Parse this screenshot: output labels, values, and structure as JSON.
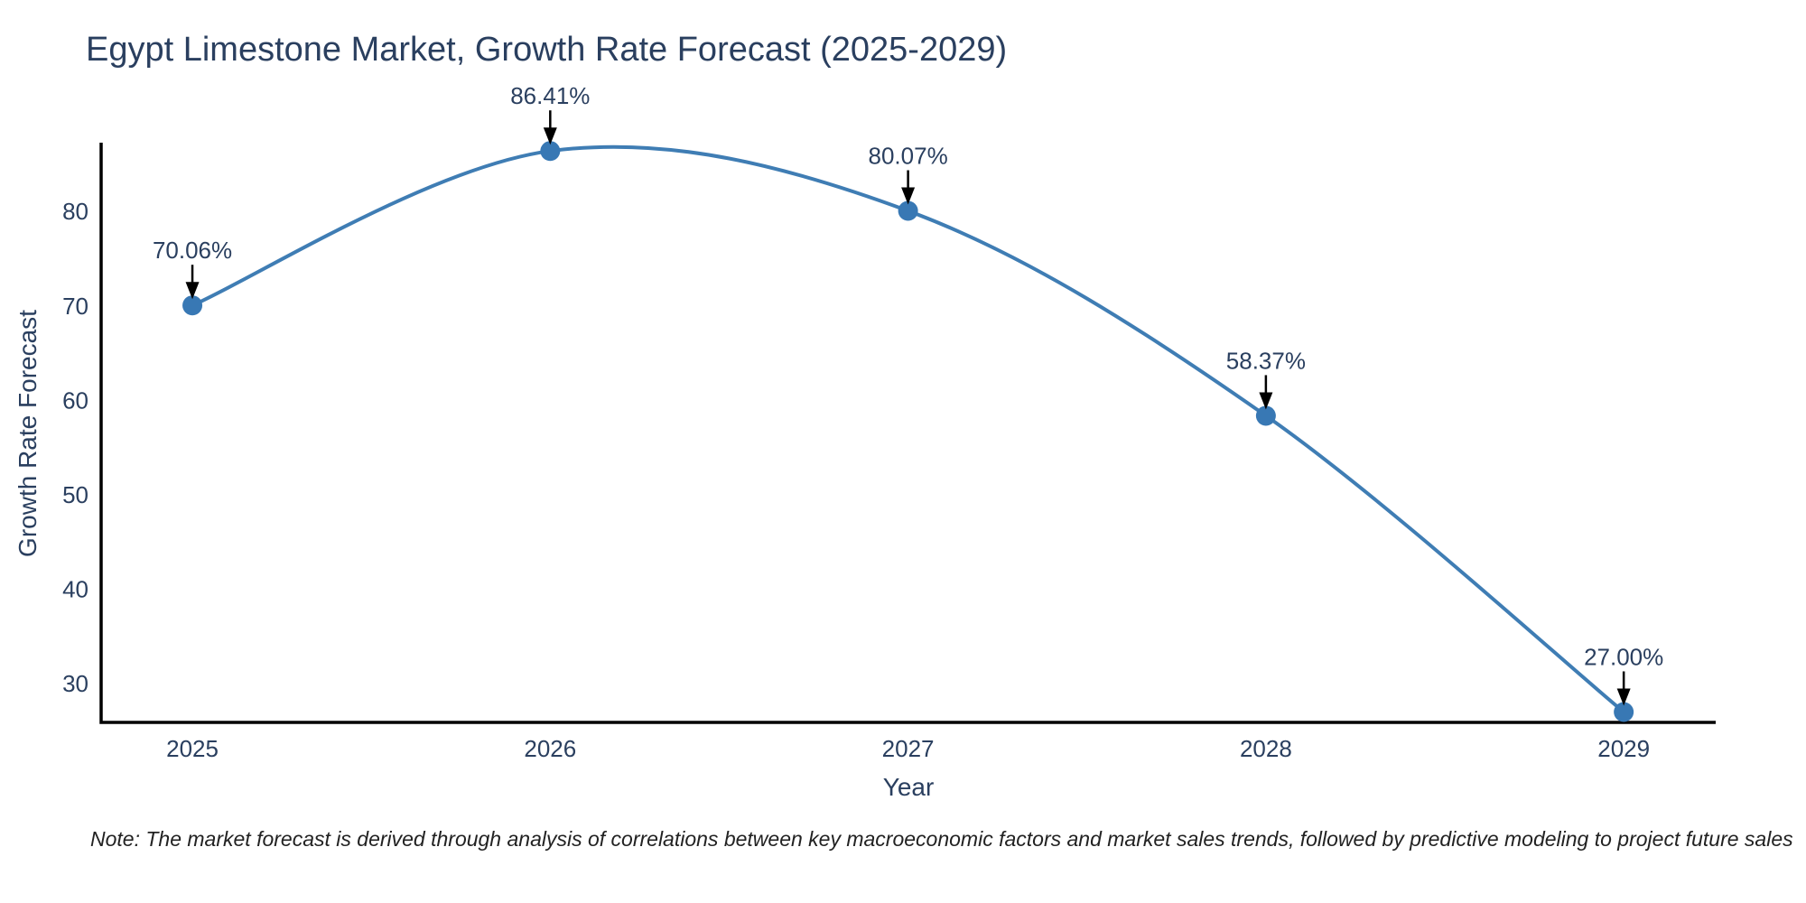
{
  "page": {
    "background": "#ffffff"
  },
  "chart_data": {
    "type": "line",
    "title": "Egypt Limestone Market, Growth Rate Forecast (2025-2029)",
    "xlabel": "Year",
    "ylabel": "Growth Rate Forecast",
    "x": [
      2025,
      2026,
      2027,
      2028,
      2029
    ],
    "y": [
      70.06,
      86.41,
      80.07,
      58.37,
      27.0
    ],
    "point_labels": [
      "70.06%",
      "86.41%",
      "80.07%",
      "58.37%",
      "27.00%"
    ],
    "xticks": [
      "2025",
      "2026",
      "2027",
      "2028",
      "2029"
    ],
    "xtick_values": [
      2025,
      2026,
      2027,
      2028,
      2029
    ],
    "yticks": [
      30,
      40,
      50,
      60,
      70,
      80
    ],
    "xlim": [
      2024.745,
      2029.257
    ],
    "ylim": [
      25.9,
      87.1
    ],
    "grid": false,
    "legend": "none",
    "line_shape": "spline",
    "marker": "circle",
    "annotation_arrows": true,
    "colors": {
      "line": "#3f7db4",
      "marker": "#3878b4",
      "axis": "#000000",
      "arrow": "#000000",
      "text": "#2a3f5f",
      "note_text": "#222222"
    }
  },
  "note": "Note: The market forecast is derived through analysis of correlations between key macroeconomic factors and market sales trends, followed by predictive modeling to project future sales"
}
